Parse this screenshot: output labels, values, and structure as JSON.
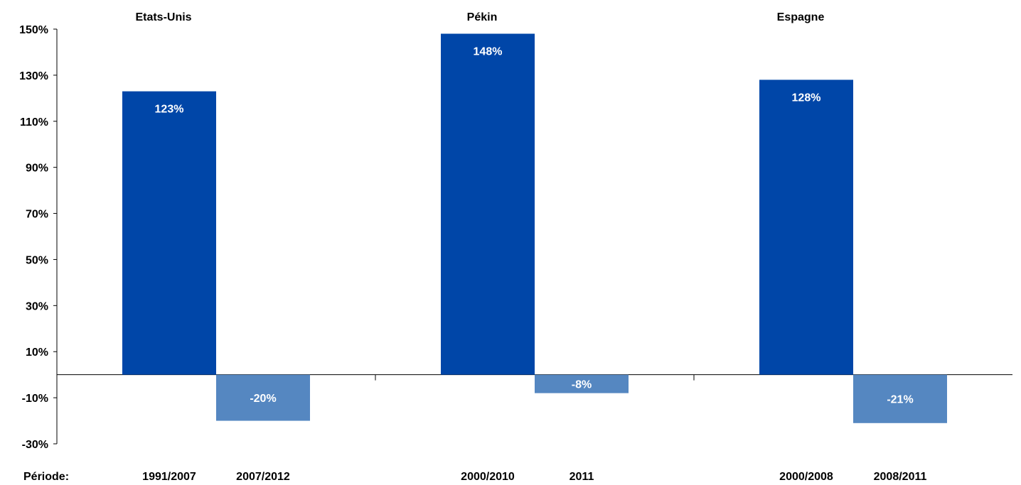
{
  "chart_data": {
    "type": "bar",
    "groups": [
      "Etats-Unis",
      "Pékin",
      "Espagne"
    ],
    "period_header": "Période",
    "series": [
      {
        "color": "#0046A8",
        "periods": [
          "1991/2007",
          "2000/2010",
          "2000/2008"
        ],
        "values": [
          123,
          148,
          128
        ],
        "labels": [
          "123%",
          "148%",
          "128%"
        ]
      },
      {
        "color": "#5587C1",
        "periods": [
          "2007/2012",
          "2011",
          "2008/2011"
        ],
        "values": [
          -20,
          -8,
          -21
        ],
        "labels": [
          "-20%",
          "-8%",
          "-21%"
        ]
      }
    ],
    "ylim": [
      -30,
      150
    ],
    "yticks": [
      150,
      130,
      110,
      90,
      70,
      50,
      30,
      10,
      -10,
      -30
    ],
    "ytick_labels": [
      "150%",
      "130%",
      "110%",
      "90%",
      "70%",
      "50%",
      "30%",
      "10%",
      "-10%",
      "-30%"
    ],
    "grid": false,
    "legend": "none"
  }
}
